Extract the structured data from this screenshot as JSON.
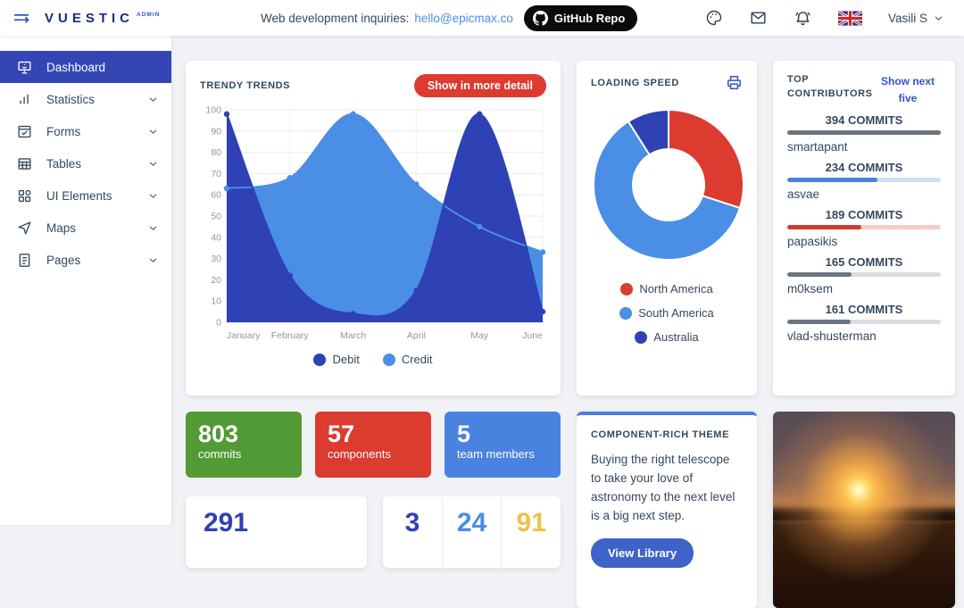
{
  "header": {
    "brand": "VUESTIC",
    "brand_suffix": "ADMIN",
    "inquiries_label": "Web development inquiries:",
    "inquiries_email": "hello@epicmax.co",
    "github_button": "GitHub Repo",
    "user_name": "Vasili S",
    "icons": [
      "palette-icon",
      "mail-icon",
      "bell-icon",
      "uk-flag"
    ]
  },
  "sidebar": {
    "items": [
      {
        "label": "Dashboard",
        "icon": "dashboard-icon",
        "active": true,
        "expandable": false
      },
      {
        "label": "Statistics",
        "icon": "statistics-icon",
        "active": false,
        "expandable": true
      },
      {
        "label": "Forms",
        "icon": "forms-icon",
        "active": false,
        "expandable": true
      },
      {
        "label": "Tables",
        "icon": "tables-icon",
        "active": false,
        "expandable": true
      },
      {
        "label": "UI Elements",
        "icon": "ui-elements-icon",
        "active": false,
        "expandable": true
      },
      {
        "label": "Maps",
        "icon": "maps-icon",
        "active": false,
        "expandable": true
      },
      {
        "label": "Pages",
        "icon": "pages-icon",
        "active": false,
        "expandable": true
      }
    ]
  },
  "trends_card": {
    "title": "TRENDY TRENDS",
    "button": "Show in more detail",
    "button_color": "#dd3b30"
  },
  "loading_card": {
    "title": "LOADING SPEED"
  },
  "contributors_card": {
    "title": "TOP CONTRIBUTORS",
    "link": "Show next five",
    "items": [
      {
        "name": "smartapant",
        "commits": 394,
        "label": "394 COMMITS",
        "color": "#6b7580",
        "track": "#6b7580"
      },
      {
        "name": "asvae",
        "commits": 234,
        "label": "234 COMMITS",
        "color": "#4a82dd",
        "track": "#cfdff7"
      },
      {
        "name": "papasikis",
        "commits": 189,
        "label": "189 COMMITS",
        "color": "#d43b30",
        "track": "#f6cbc7"
      },
      {
        "name": "m0ksem",
        "commits": 165,
        "label": "165 COMMITS",
        "color": "#6b7580",
        "track": "#d9dce0"
      },
      {
        "name": "vlad-shusterman",
        "commits": 161,
        "label": "161 COMMITS",
        "color": "#6b7580",
        "track": "#d9dce0"
      }
    ]
  },
  "stat_cards": [
    {
      "value": "803",
      "label": "commits",
      "color": "#529a35"
    },
    {
      "value": "57",
      "label": "components",
      "color": "#dc3b30"
    },
    {
      "value": "5",
      "label": "team members",
      "color": "#4a82df"
    }
  ],
  "theme_card": {
    "title": "COMPONENT-RICH THEME",
    "text": "Buying the right telescope to take your love of astronomy to the next level is a big next step.",
    "button": "View Library"
  },
  "number_cards": {
    "left_value": "291",
    "left_color": "#2e41b5",
    "right_values": [
      "3",
      "24",
      "91"
    ],
    "right_colors": [
      "#2e41b5",
      "#4a8ee5",
      "#efc04a"
    ]
  },
  "photo": {
    "description": "sunset over a wheat field"
  },
  "chart_data": [
    {
      "type": "area",
      "title": "TRENDY TRENDS",
      "x": [
        "January",
        "February",
        "March",
        "April",
        "May",
        "June"
      ],
      "series": [
        {
          "name": "Debit",
          "color": "#2e41b5",
          "values": [
            98,
            22,
            4,
            15,
            98,
            5
          ]
        },
        {
          "name": "Credit",
          "color": "#4a8ee5",
          "values": [
            63,
            68,
            98,
            65,
            45,
            33
          ]
        }
      ],
      "ylim": [
        0,
        100
      ],
      "ytick": 10,
      "grid": true,
      "legend_position": "bottom"
    },
    {
      "type": "pie",
      "title": "LOADING SPEED",
      "labels": [
        "North America",
        "South America",
        "Australia"
      ],
      "values": [
        30,
        61,
        9
      ],
      "colors": [
        "#dc3b30",
        "#4a8ee5",
        "#2e41b5"
      ],
      "donut": true,
      "legend_position": "bottom"
    }
  ]
}
